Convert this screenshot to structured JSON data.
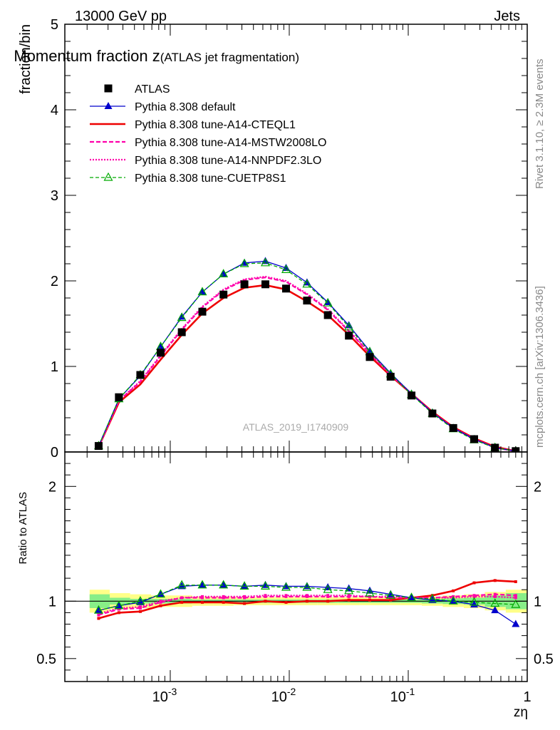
{
  "header": {
    "energy": "13000 GeV pp",
    "category": "Jets"
  },
  "side_labels": {
    "rivet": "Rivet 3.1.10, ≥ 2.3M events",
    "mcplots": "mcplots.cern.ch [arXiv:1306.3436]"
  },
  "chart_data": {
    "type": "line",
    "title_main": "Momentum fraction z",
    "title_sub": "(ATLAS jet fragmentation)",
    "watermark": "ATLAS_2019_I1740909",
    "xlabel": "zη",
    "ylabel": "fraction/bin",
    "ratio_ylabel": "Ratio to ATLAS",
    "x_scale": "log",
    "xlim": [
      0.00013,
      1.0
    ],
    "ylim": [
      0,
      5
    ],
    "ratio_ylim": [
      0.3,
      2.3
    ],
    "y_ticks": [
      "0",
      "1",
      "2",
      "3",
      "4",
      "5"
    ],
    "ratio_ticks": [
      "0.5",
      "1",
      "2"
    ],
    "x_ticks": [
      "10^-3",
      "10^-2",
      "10^-1",
      "1"
    ],
    "legend_position": "top-left",
    "x": [
      0.00025,
      0.00037,
      0.00056,
      0.00083,
      0.00125,
      0.00186,
      0.0028,
      0.0042,
      0.0063,
      0.0094,
      0.0141,
      0.0211,
      0.0317,
      0.0475,
      0.0711,
      0.1065,
      0.1596,
      0.239,
      0.358,
      0.536,
      0.8
    ],
    "series": [
      {
        "name": "ATLAS",
        "color": "#000000",
        "style": "marker-square",
        "values": [
          0.07,
          0.64,
          0.9,
          1.16,
          1.4,
          1.64,
          1.84,
          1.96,
          1.96,
          1.91,
          1.77,
          1.6,
          1.36,
          1.11,
          0.88,
          0.66,
          0.45,
          0.28,
          0.15,
          0.05,
          0.01
        ],
        "ratio": [
          1,
          1,
          1,
          1,
          1,
          1,
          1,
          1,
          1,
          1,
          1,
          1,
          1,
          1,
          1,
          1,
          1,
          1,
          1,
          1,
          1
        ]
      },
      {
        "name": "Pythia 8.308 default",
        "color": "#0000cc",
        "style": "solid-triangle",
        "values": [
          0.07,
          0.62,
          0.89,
          1.23,
          1.58,
          1.87,
          2.08,
          2.21,
          2.23,
          2.15,
          1.98,
          1.75,
          1.48,
          1.18,
          0.92,
          0.68,
          0.46,
          0.28,
          0.15,
          0.05,
          0.01
        ],
        "ratio": [
          0.92,
          0.96,
          0.99,
          1.06,
          1.13,
          1.14,
          1.14,
          1.13,
          1.14,
          1.13,
          1.13,
          1.12,
          1.11,
          1.09,
          1.06,
          1.03,
          1.01,
          1.0,
          0.97,
          0.92,
          0.8
        ]
      },
      {
        "name": "Pythia 8.308 tune-A14-CTEQL1",
        "color": "#ee0000",
        "style": "solid-thick",
        "values": [
          0.06,
          0.58,
          0.79,
          1.08,
          1.37,
          1.62,
          1.8,
          1.92,
          1.95,
          1.9,
          1.76,
          1.6,
          1.37,
          1.12,
          0.89,
          0.68,
          0.47,
          0.29,
          0.16,
          0.06,
          0.01
        ],
        "ratio": [
          0.85,
          0.9,
          0.91,
          0.96,
          0.99,
          0.99,
          0.99,
          0.98,
          1.0,
          0.99,
          1.0,
          1.0,
          1.01,
          1.01,
          1.01,
          1.03,
          1.05,
          1.09,
          1.16,
          1.18,
          1.17
        ]
      },
      {
        "name": "Pythia 8.308 tune-A14-MSTW2008LO",
        "color": "#ff00aa",
        "style": "dashed",
        "values": [
          0.06,
          0.6,
          0.82,
          1.12,
          1.43,
          1.69,
          1.89,
          2.01,
          2.04,
          1.99,
          1.84,
          1.66,
          1.41,
          1.15,
          0.9,
          0.68,
          0.46,
          0.28,
          0.15,
          0.05,
          0.01
        ],
        "ratio": [
          0.88,
          0.93,
          0.94,
          0.99,
          1.03,
          1.03,
          1.03,
          1.03,
          1.04,
          1.04,
          1.04,
          1.04,
          1.04,
          1.04,
          1.03,
          1.03,
          1.03,
          1.04,
          1.05,
          1.06,
          1.05
        ]
      },
      {
        "name": "Pythia 8.308 tune-A14-NNPDF2.3LO",
        "color": "#ff00aa",
        "style": "dotted",
        "values": [
          0.06,
          0.6,
          0.83,
          1.13,
          1.44,
          1.7,
          1.9,
          2.02,
          2.05,
          2.0,
          1.85,
          1.67,
          1.42,
          1.16,
          0.91,
          0.68,
          0.46,
          0.28,
          0.15,
          0.05,
          0.01
        ],
        "ratio": [
          0.89,
          0.94,
          0.95,
          1.0,
          1.03,
          1.04,
          1.04,
          1.04,
          1.05,
          1.05,
          1.05,
          1.05,
          1.05,
          1.04,
          1.04,
          1.03,
          1.03,
          1.03,
          1.04,
          1.04,
          1.03
        ]
      },
      {
        "name": "Pythia 8.308 tune-CUETP8S1",
        "color": "#00aa00",
        "style": "dashed-open-triangle",
        "values": [
          0.07,
          0.62,
          0.9,
          1.23,
          1.57,
          1.87,
          2.08,
          2.2,
          2.21,
          2.13,
          1.96,
          1.74,
          1.46,
          1.17,
          0.91,
          0.67,
          0.45,
          0.27,
          0.14,
          0.05,
          0.01
        ],
        "ratio": [
          0.92,
          0.96,
          1.0,
          1.06,
          1.14,
          1.14,
          1.14,
          1.13,
          1.13,
          1.12,
          1.12,
          1.1,
          1.09,
          1.07,
          1.05,
          1.03,
          1.02,
          1.0,
          0.99,
          0.98,
          0.97
        ]
      }
    ],
    "uncertainty_band": {
      "stat_color": "#88ee88",
      "total_color": "#ffff88",
      "edges": [
        0.00021,
        0.00031,
        0.00046,
        0.00069,
        0.00102,
        0.00153,
        0.0023,
        0.0034,
        0.0051,
        0.0077,
        0.0115,
        0.0172,
        0.0258,
        0.0387,
        0.058,
        0.087,
        0.13,
        0.195,
        0.293,
        0.44,
        0.66,
        0.99
      ],
      "stat": [
        0.06,
        0.03,
        0.02,
        0.02,
        0.02,
        0.015,
        0.015,
        0.015,
        0.015,
        0.015,
        0.015,
        0.015,
        0.015,
        0.015,
        0.015,
        0.015,
        0.02,
        0.025,
        0.03,
        0.05,
        0.07
      ],
      "total": [
        0.1,
        0.07,
        0.06,
        0.05,
        0.05,
        0.04,
        0.04,
        0.035,
        0.035,
        0.035,
        0.035,
        0.035,
        0.035,
        0.035,
        0.035,
        0.035,
        0.04,
        0.05,
        0.06,
        0.08,
        0.1
      ]
    }
  }
}
